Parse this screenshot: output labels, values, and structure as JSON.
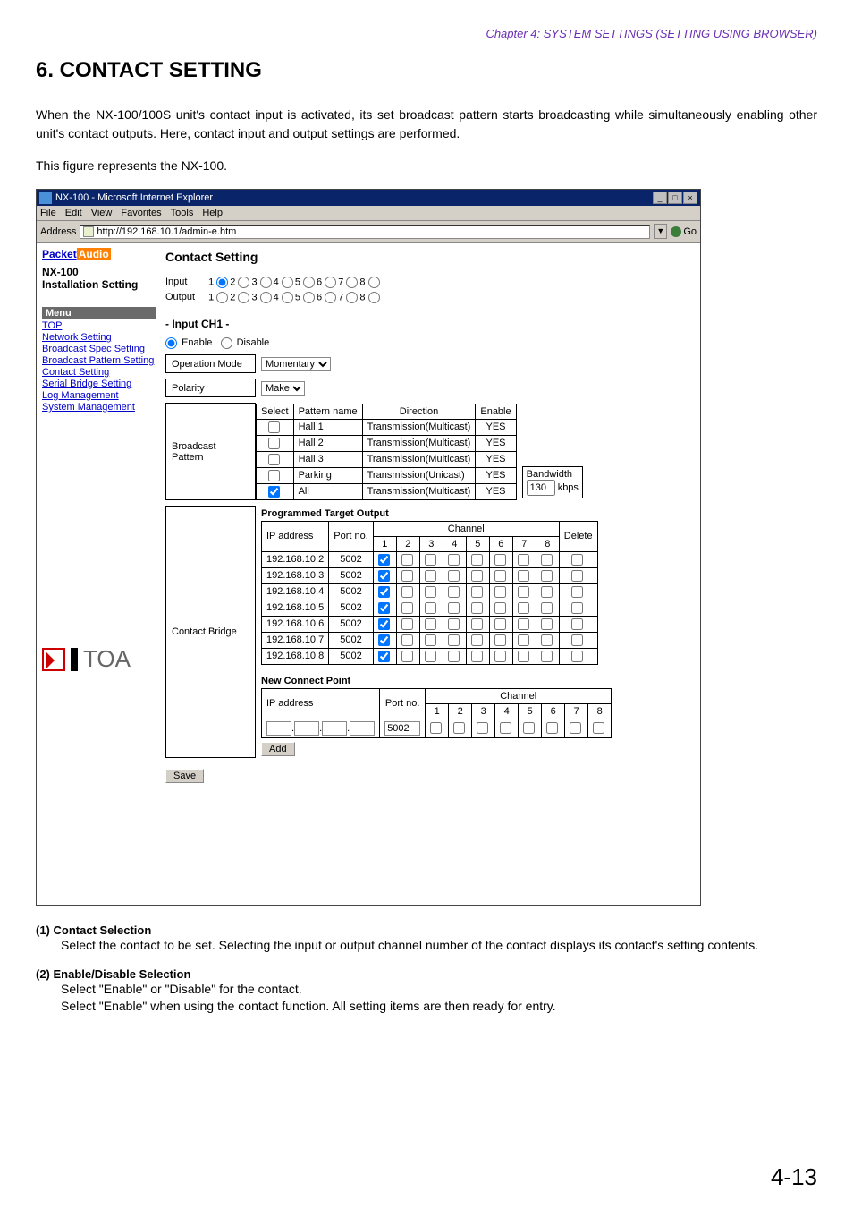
{
  "chapter_header": "Chapter 4:  SYSTEM SETTINGS (SETTING USING BROWSER)",
  "section_title": "6. CONTACT SETTING",
  "intro_p1": "When the NX-100/100S unit's contact input is activated, its set broadcast pattern starts broadcasting while simultaneously enabling other unit's contact outputs. Here, contact input and output settings are performed.",
  "intro_p2": "This figure represents the NX-100.",
  "window": {
    "title": "NX-100 - Microsoft Internet Explorer",
    "menu": [
      "File",
      "Edit",
      "View",
      "Favorites",
      "Tools",
      "Help"
    ],
    "addr_label": "Address",
    "url": "http://192.168.10.1/admin-e.htm",
    "go_label": "Go"
  },
  "sidebar": {
    "brand_a": "Packet",
    "brand_b": "Audio",
    "nx": "NX-100",
    "inst": "Installation Setting",
    "menu_head": "Menu",
    "links": [
      "TOP",
      "Network Setting",
      "Broadcast Spec Setting",
      "Broadcast Pattern Setting",
      "Contact Setting",
      "Serial Bridge Setting",
      "Log Management",
      "System Management"
    ],
    "toa": "TOA"
  },
  "main": {
    "heading": "Contact Setting",
    "input_label": "Input",
    "output_label": "Output",
    "channels": [
      "1",
      "2",
      "3",
      "4",
      "5",
      "6",
      "7",
      "8"
    ],
    "input_selected": 0,
    "sub_heading": "- Input CH1 -",
    "enable_label": "Enable",
    "disable_label": "Disable",
    "op_mode_label": "Operation Mode",
    "op_mode_value": "Momentary",
    "polarity_label": "Polarity",
    "polarity_value": "Make",
    "bp_label": "Broadcast Pattern",
    "bp_headers": [
      "Select",
      "Pattern name",
      "Direction",
      "Enable"
    ],
    "bp_rows": [
      {
        "sel": false,
        "name": "Hall 1",
        "dir": "Transmission(Multicast)",
        "en": "YES"
      },
      {
        "sel": false,
        "name": "Hall 2",
        "dir": "Transmission(Multicast)",
        "en": "YES"
      },
      {
        "sel": false,
        "name": "Hall 3",
        "dir": "Transmission(Multicast)",
        "en": "YES"
      },
      {
        "sel": false,
        "name": "Parking",
        "dir": "Transmission(Unicast)",
        "en": "YES"
      },
      {
        "sel": true,
        "name": "All",
        "dir": "Transmission(Multicast)",
        "en": "YES"
      }
    ],
    "bandwidth_label": "Bandwidth",
    "bandwidth_value": "130",
    "bandwidth_unit": "kbps",
    "cb_label": "Contact Bridge",
    "cb_heading": "Programmed Target Output",
    "cb_cols": {
      "ip": "IP address",
      "port": "Port no.",
      "channel": "Channel",
      "delete": "Delete"
    },
    "cb_channels": [
      "1",
      "2",
      "3",
      "4",
      "5",
      "6",
      "7",
      "8"
    ],
    "cb_rows": [
      {
        "ip": "192.168.10.2",
        "port": "5002",
        "ch": [
          true,
          false,
          false,
          false,
          false,
          false,
          false,
          false
        ]
      },
      {
        "ip": "192.168.10.3",
        "port": "5002",
        "ch": [
          true,
          false,
          false,
          false,
          false,
          false,
          false,
          false
        ]
      },
      {
        "ip": "192.168.10.4",
        "port": "5002",
        "ch": [
          true,
          false,
          false,
          false,
          false,
          false,
          false,
          false
        ]
      },
      {
        "ip": "192.168.10.5",
        "port": "5002",
        "ch": [
          true,
          false,
          false,
          false,
          false,
          false,
          false,
          false
        ]
      },
      {
        "ip": "192.168.10.6",
        "port": "5002",
        "ch": [
          true,
          false,
          false,
          false,
          false,
          false,
          false,
          false
        ]
      },
      {
        "ip": "192.168.10.7",
        "port": "5002",
        "ch": [
          true,
          false,
          false,
          false,
          false,
          false,
          false,
          false
        ]
      },
      {
        "ip": "192.168.10.8",
        "port": "5002",
        "ch": [
          true,
          false,
          false,
          false,
          false,
          false,
          false,
          false
        ]
      }
    ],
    "ncp_heading": "New Connect Point",
    "ncp_port": "5002",
    "add_label": "Add",
    "save_label": "Save"
  },
  "desc": {
    "items": [
      {
        "num": "(1)",
        "title": "Contact Selection",
        "body": "Select the contact to be set. Selecting the input or output channel number of the contact displays its contact's setting contents."
      },
      {
        "num": "(2)",
        "title": "Enable/Disable Selection",
        "body": "Select \"Enable\" or \"Disable\" for the contact.\nSelect \"Enable\" when using the contact function. All setting items are then ready for entry."
      }
    ]
  },
  "page_num": "4-13"
}
